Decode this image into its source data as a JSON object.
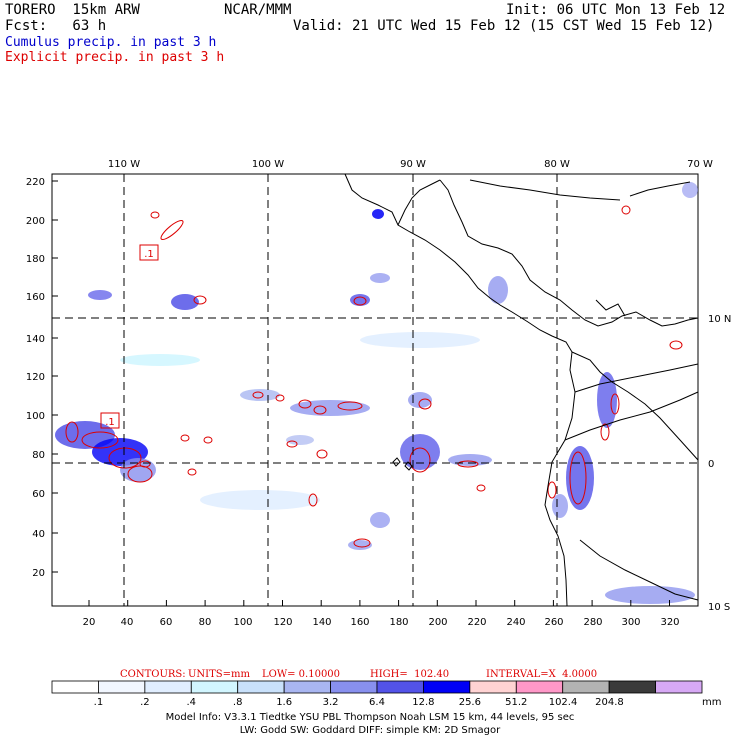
{
  "header": {
    "model": "TORERO  15km ARW",
    "org": "NCAR/MMM",
    "init": "Init: 06 UTC Mon 13 Feb 12",
    "fcst": "Fcst:   63 h",
    "valid": "Valid: 21 UTC Wed 15 Feb 12 (15 CST Wed 15 Feb 12)",
    "cumulus": "Cumulus precip. in past 3 h",
    "explicit": "Explicit precip. in past 3 h"
  },
  "map": {
    "top_lon_labels": [
      "110 W",
      "100 W",
      "90 W",
      "80 W",
      "70 W"
    ],
    "right_lat_labels": [
      "10 N",
      "0",
      "10 S"
    ],
    "y_ticks": [
      "220",
      "200",
      "180",
      "160",
      "140",
      "120",
      "100",
      "80",
      "60",
      "40",
      "20"
    ],
    "x_ticks": [
      "20",
      "40",
      "60",
      "80",
      "100",
      "120",
      "140",
      "160",
      "180",
      "200",
      "220",
      "240",
      "260",
      "280",
      "300",
      "320"
    ],
    "box_labels": [
      ".1",
      ".1"
    ],
    "colors": {
      "coast": "#000000",
      "grid": "#000000",
      "contour": "#dd0000"
    }
  },
  "contours_line": {
    "label": "CONTOURS:",
    "units": "UNITS=mm",
    "low": "LOW= 0.10000",
    "high": "HIGH=  102.40",
    "interval": "INTERVAL=X  4.0000"
  },
  "colorbar": {
    "colors": [
      "#ffffff",
      "#f2f7ff",
      "#e1eeff",
      "#d2f6ff",
      "#c9e1fb",
      "#a9b6f1",
      "#8890ee",
      "#5353e8",
      "#0000f6",
      "#ffd3d3",
      "#ff98c8",
      "#b3b3b3",
      "#3a3a3a",
      "#d7a9f5"
    ],
    "labels": [
      ".1",
      ".2",
      ".4",
      ".8",
      "1.6",
      "3.2",
      "6.4",
      "12.8",
      "25.6",
      "51.2",
      "102.4",
      "204.8"
    ],
    "unit": "mm"
  },
  "footer": {
    "line1": "Model Info: V3.3.1    Tiedtke YSU PBL  Thompson    Noah LSM  15 km,   44 levels,   95 sec",
    "line2": "LW: Godd SW: Goddard DIFF: simple KM: 2D Smagor"
  }
}
